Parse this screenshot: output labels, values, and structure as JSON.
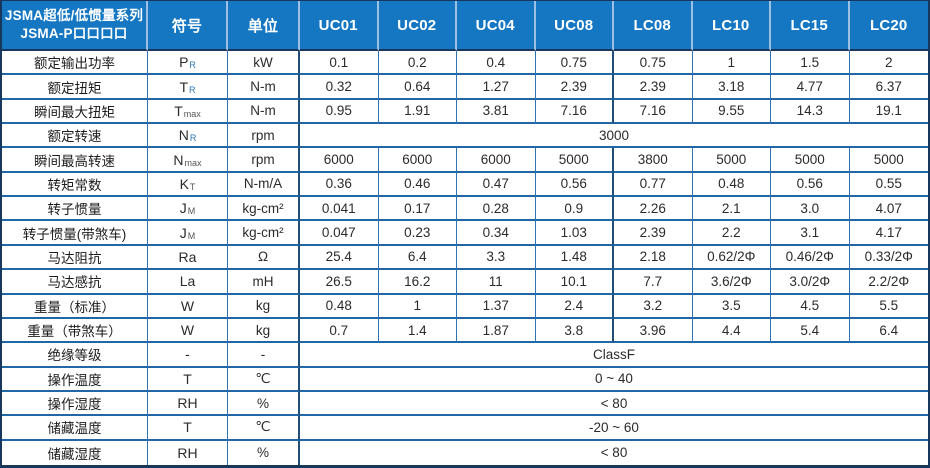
{
  "colors": {
    "header_bg": "#1577c2",
    "header_divider": "#9cc0e4",
    "border_dark": "#17375d",
    "border_group": "#1f4e79",
    "border_row": "#2166a5",
    "border_col": "#2e75b6",
    "sub_blue": "#2e75b6"
  },
  "table": {
    "header": {
      "title_line1": "JSMA超低/低惯量系列",
      "title_line2": "JSMA-P口口口口",
      "symbol_col": "符号",
      "unit_col": "单位",
      "models": [
        "UC01",
        "UC02",
        "UC04",
        "UC08",
        "LC08",
        "LC10",
        "LC15",
        "LC20"
      ]
    },
    "rows": [
      {
        "label": "额定输出功率",
        "sym": "P",
        "sub": "R",
        "sub_blue": true,
        "unit": "kW",
        "values": [
          "0.1",
          "0.2",
          "0.4",
          "0.75",
          "0.75",
          "1",
          "1.5",
          "2"
        ]
      },
      {
        "label": "额定扭矩",
        "sym": "T",
        "sub": "R",
        "sub_blue": true,
        "unit": "N-m",
        "values": [
          "0.32",
          "0.64",
          "1.27",
          "2.39",
          "2.39",
          "3.18",
          "4.77",
          "6.37"
        ]
      },
      {
        "label": "瞬间最大扭矩",
        "sym": "T",
        "sub": "max",
        "sub_blue": false,
        "unit": "N-m",
        "values": [
          "0.95",
          "1.91",
          "3.81",
          "7.16",
          "7.16",
          "9.55",
          "14.3",
          "19.1"
        ]
      },
      {
        "label": "额定转速",
        "sym": "N",
        "sub": "R",
        "sub_blue": true,
        "unit": "rpm",
        "merged": "3000"
      },
      {
        "label": "瞬间最高转速",
        "sym": "N",
        "sub": "max",
        "sub_blue": false,
        "unit": "rpm",
        "values": [
          "6000",
          "6000",
          "6000",
          "5000",
          "3800",
          "5000",
          "5000",
          "5000"
        ]
      },
      {
        "label": "转矩常数",
        "sym": "K",
        "sub": "T",
        "sub_blue": false,
        "unit": "N-m/A",
        "values": [
          "0.36",
          "0.46",
          "0.47",
          "0.56",
          "0.77",
          "0.48",
          "0.56",
          "0.55"
        ]
      },
      {
        "label": "转子惯量",
        "sym": "J",
        "sub": "M",
        "sub_blue": false,
        "unit": "kg-cm²",
        "values": [
          "0.041",
          "0.17",
          "0.28",
          "0.9",
          "2.26",
          "2.1",
          "3.0",
          "4.07"
        ]
      },
      {
        "label": "转子惯量(带煞车)",
        "sym": "J",
        "sub": "M",
        "sub_blue": false,
        "unit": "kg-cm²",
        "values": [
          "0.047",
          "0.23",
          "0.34",
          "1.03",
          "2.39",
          "2.2",
          "3.1",
          "4.17"
        ]
      },
      {
        "label": "马达阻抗",
        "sym": "Ra",
        "sub": "",
        "sub_blue": false,
        "unit": "Ω",
        "values": [
          "25.4",
          "6.4",
          "3.3",
          "1.48",
          "2.18",
          "0.62/2Φ",
          "0.46/2Φ",
          "0.33/2Φ"
        ]
      },
      {
        "label": "马达感抗",
        "sym": "La",
        "sub": "",
        "sub_blue": false,
        "unit": "mH",
        "values": [
          "26.5",
          "16.2",
          "11",
          "10.1",
          "7.7",
          "3.6/2Φ",
          "3.0/2Φ",
          "2.2/2Φ"
        ]
      },
      {
        "label": "重量（标准）",
        "sym": "W",
        "sub": "",
        "sub_blue": false,
        "unit": "kg",
        "values": [
          "0.48",
          "1",
          "1.37",
          "2.4",
          "3.2",
          "3.5",
          "4.5",
          "5.5"
        ]
      },
      {
        "label": "重量（带煞车）",
        "sym": "W",
        "sub": "",
        "sub_blue": false,
        "unit": "kg",
        "values": [
          "0.7",
          "1.4",
          "1.87",
          "3.8",
          "3.96",
          "4.4",
          "5.4",
          "6.4"
        ]
      },
      {
        "label": "绝缘等级",
        "sym": "-",
        "sub": "",
        "sub_blue": false,
        "unit": "-",
        "merged": "ClassF"
      },
      {
        "label": "操作温度",
        "sym": "T",
        "sub": "",
        "sub_blue": false,
        "unit": "℃",
        "merged": "0 ~ 40"
      },
      {
        "label": "操作湿度",
        "sym": "RH",
        "sub": "",
        "sub_blue": false,
        "unit": "%",
        "merged": "< 80"
      },
      {
        "label": "储藏温度",
        "sym": "T",
        "sub": "",
        "sub_blue": false,
        "unit": "℃",
        "merged": "-20 ~ 60"
      },
      {
        "label": "储藏湿度",
        "sym": "RH",
        "sub": "",
        "sub_blue": false,
        "unit": "%",
        "merged": "< 80"
      }
    ]
  }
}
